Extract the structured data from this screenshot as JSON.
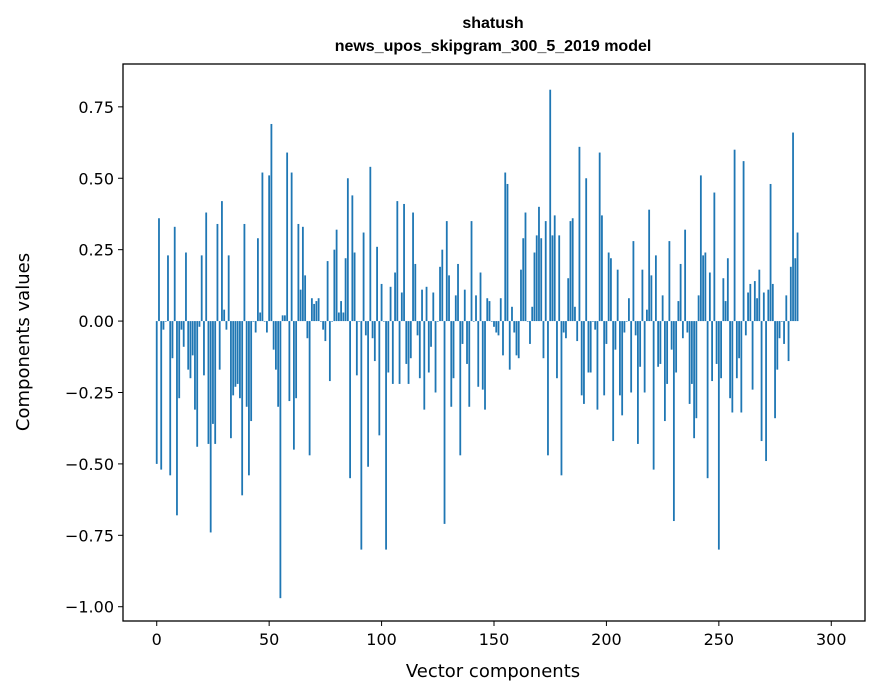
{
  "chart_data": {
    "type": "bar",
    "title": "shatush",
    "subtitle": "news_upos_skipgram_300_5_2019 model",
    "xlabel": "Vector components",
    "ylabel": "Components values",
    "xlim": [
      -15,
      315
    ],
    "ylim": [
      -1.05,
      0.9
    ],
    "xticks": [
      0,
      50,
      100,
      150,
      200,
      250,
      300
    ],
    "yticks": [
      -1.0,
      -0.75,
      -0.5,
      -0.25,
      0.0,
      0.25,
      0.5,
      0.75
    ],
    "ytick_labels": [
      "−1.00",
      "−0.75",
      "−0.50",
      "−0.25",
      "0.00",
      "0.25",
      "0.50",
      "0.75"
    ],
    "grid": false,
    "bar_color": "#1f77b4",
    "values": [
      -0.5,
      0.36,
      -0.52,
      -0.03,
      0.0,
      0.23,
      -0.54,
      -0.13,
      0.33,
      -0.68,
      -0.27,
      -0.03,
      -0.09,
      0.24,
      -0.17,
      -0.2,
      -0.12,
      -0.31,
      -0.44,
      -0.02,
      0.23,
      -0.19,
      0.38,
      -0.43,
      -0.74,
      -0.36,
      -0.43,
      0.34,
      -0.17,
      0.42,
      0.04,
      -0.03,
      0.23,
      -0.41,
      -0.26,
      -0.23,
      -0.22,
      -0.27,
      -0.61,
      0.34,
      -0.3,
      -0.54,
      -0.35,
      0.0,
      -0.04,
      0.29,
      0.03,
      0.52,
      0.0,
      -0.04,
      0.51,
      0.69,
      -0.1,
      -0.17,
      -0.3,
      -0.97,
      0.02,
      0.02,
      0.59,
      -0.28,
      0.52,
      -0.45,
      -0.27,
      0.34,
      0.11,
      0.33,
      0.16,
      -0.06,
      -0.47,
      0.08,
      0.06,
      0.07,
      0.08,
      0.0,
      -0.03,
      -0.07,
      0.21,
      -0.21,
      0.0,
      0.25,
      0.32,
      0.03,
      0.07,
      0.03,
      0.22,
      0.5,
      -0.55,
      0.44,
      0.24,
      -0.19,
      0.0,
      -0.8,
      0.31,
      -0.05,
      -0.51,
      0.54,
      -0.06,
      -0.14,
      0.26,
      -0.4,
      0.13,
      0.0,
      -0.8,
      -0.18,
      0.12,
      -0.22,
      0.17,
      0.42,
      -0.22,
      0.1,
      0.41,
      -0.15,
      -0.22,
      -0.13,
      0.38,
      0.2,
      -0.05,
      -0.2,
      0.11,
      -0.31,
      0.12,
      -0.18,
      -0.09,
      0.1,
      -0.25,
      0.0,
      0.19,
      0.25,
      -0.71,
      0.35,
      0.16,
      -0.3,
      -0.2,
      0.09,
      0.2,
      -0.47,
      -0.08,
      0.11,
      -0.15,
      -0.3,
      0.35,
      0.0,
      0.09,
      -0.23,
      0.17,
      -0.24,
      -0.31,
      0.08,
      0.07,
      0.0,
      -0.02,
      -0.04,
      -0.05,
      0.08,
      -0.12,
      0.52,
      0.48,
      -0.17,
      0.05,
      -0.04,
      -0.12,
      -0.13,
      0.18,
      0.29,
      0.38,
      0.0,
      -0.08,
      0.05,
      0.24,
      0.3,
      0.4,
      0.29,
      -0.13,
      0.35,
      -0.47,
      0.81,
      0.3,
      0.37,
      -0.2,
      0.3,
      -0.54,
      -0.04,
      -0.06,
      0.15,
      0.35,
      0.36,
      0.05,
      -0.07,
      0.61,
      -0.26,
      -0.29,
      0.5,
      -0.18,
      -0.18,
      0.0,
      -0.03,
      -0.31,
      0.59,
      0.37,
      -0.26,
      -0.08,
      0.24,
      0.22,
      -0.42,
      -0.1,
      0.18,
      -0.26,
      -0.33,
      -0.04,
      0.0,
      0.08,
      -0.25,
      0.28,
      -0.05,
      -0.43,
      -0.16,
      0.18,
      -0.25,
      0.04,
      0.39,
      0.16,
      -0.52,
      0.23,
      -0.16,
      -0.15,
      0.09,
      -0.35,
      -0.22,
      0.28,
      -0.1,
      -0.7,
      -0.18,
      0.07,
      0.2,
      -0.06,
      0.32,
      -0.04,
      -0.29,
      -0.22,
      -0.41,
      -0.34,
      0.09,
      0.51,
      0.23,
      0.24,
      -0.55,
      0.17,
      -0.21,
      0.45,
      -0.15,
      -0.8,
      -0.2,
      0.15,
      0.07,
      0.22,
      -0.27,
      -0.32,
      0.6,
      -0.2,
      -0.13,
      -0.32,
      0.56,
      -0.05,
      0.1,
      0.13,
      -0.24,
      0.14,
      0.08,
      0.18,
      -0.42,
      0.1,
      -0.49,
      0.11,
      0.48,
      0.13,
      -0.34,
      -0.17,
      -0.06,
      0.0,
      -0.08,
      0.09,
      -0.14,
      0.19,
      0.66,
      0.22,
      0.31
    ]
  }
}
